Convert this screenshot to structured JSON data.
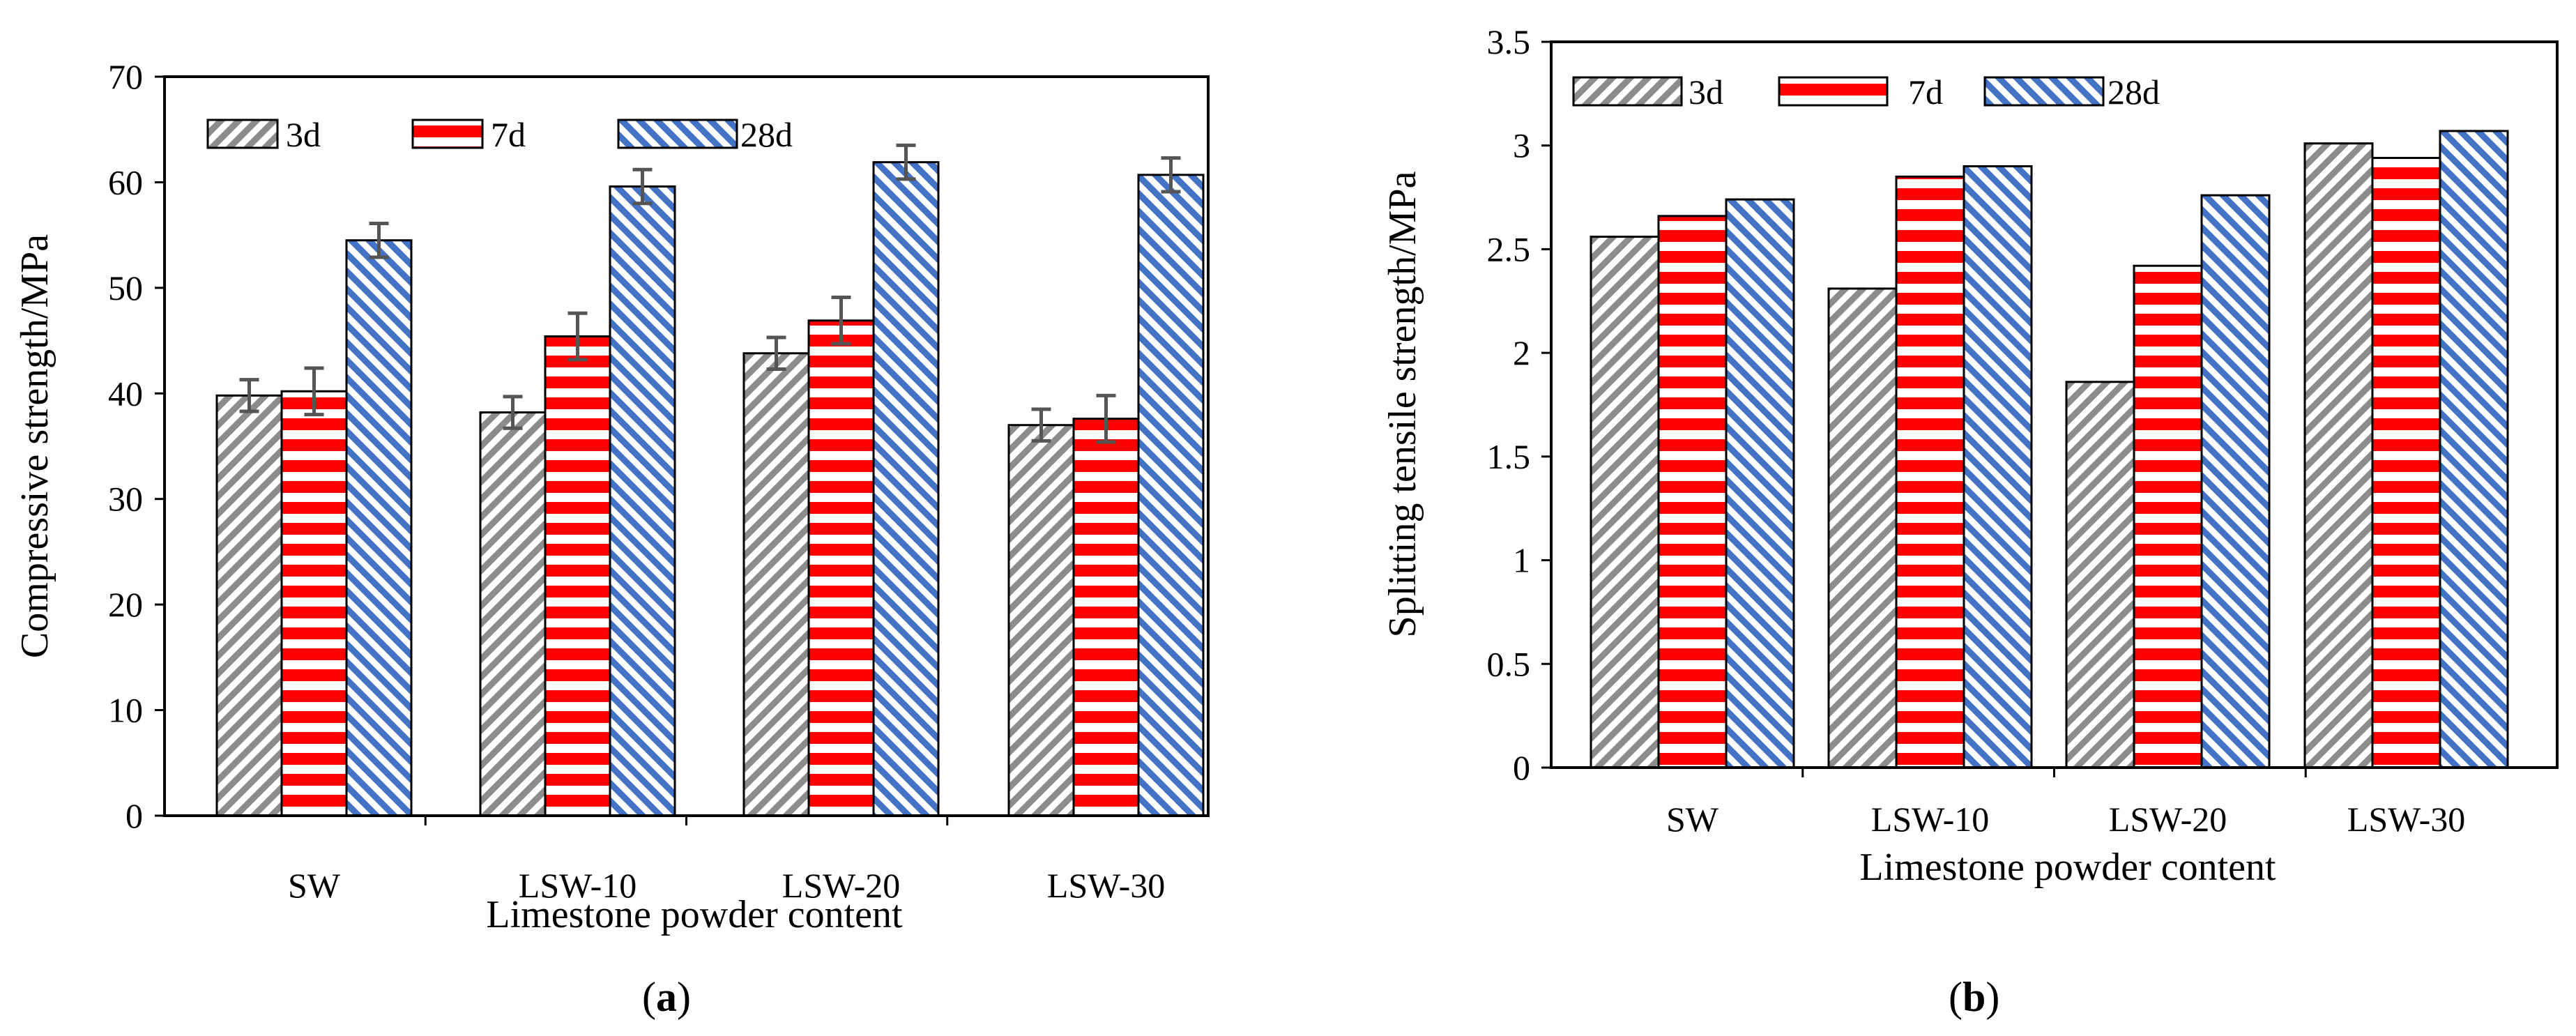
{
  "series_styles": [
    {
      "name": "3d",
      "pattern": "diagonal",
      "color": "#8c8c8c"
    },
    {
      "name": "7d",
      "pattern": "horizontal",
      "color": "#ff0000"
    },
    {
      "name": "28d",
      "pattern": "diagonal",
      "color": "#4472c4"
    }
  ],
  "chart_data": [
    {
      "id": "a",
      "type": "bar",
      "panel_label": "(a)",
      "panel_letter": "a",
      "xlabel": "Limestone powder content",
      "ylabel": "Compressive strength/MPa",
      "ylim": [
        0,
        70
      ],
      "yticks": [
        0,
        10,
        20,
        30,
        40,
        50,
        60,
        70
      ],
      "legend_position": "top-left",
      "categories": [
        "SW",
        "LSW-10",
        "LSW-20",
        "LSW-30"
      ],
      "series": [
        {
          "name": "3d",
          "values": [
            39.8,
            38.2,
            43.8,
            37.0
          ],
          "errors": [
            1.5,
            1.5,
            1.5,
            1.5
          ]
        },
        {
          "name": "7d",
          "values": [
            40.2,
            45.4,
            46.9,
            37.6
          ],
          "errors": [
            2.2,
            2.2,
            2.2,
            2.2
          ]
        },
        {
          "name": "28d",
          "values": [
            54.5,
            59.6,
            61.9,
            60.7
          ],
          "errors": [
            1.6,
            1.6,
            1.6,
            1.6
          ]
        }
      ]
    },
    {
      "id": "b",
      "type": "bar",
      "panel_label": "(b)",
      "panel_letter": "b",
      "xlabel": "Limestone powder content",
      "ylabel": "Splitting tensile strength/MPa",
      "ylim": [
        0,
        3.5
      ],
      "yticks": [
        0,
        0.5,
        1,
        1.5,
        2,
        2.5,
        3,
        3.5
      ],
      "legend_position": "top-left",
      "categories": [
        "SW",
        "LSW-10",
        "LSW-20",
        "LSW-30"
      ],
      "series": [
        {
          "name": "3d",
          "values": [
            2.56,
            2.31,
            1.86,
            3.01
          ]
        },
        {
          "name": "7d",
          "values": [
            2.66,
            2.85,
            2.42,
            2.94
          ]
        },
        {
          "name": "28d",
          "values": [
            2.74,
            2.9,
            2.76,
            3.07
          ]
        }
      ]
    }
  ]
}
